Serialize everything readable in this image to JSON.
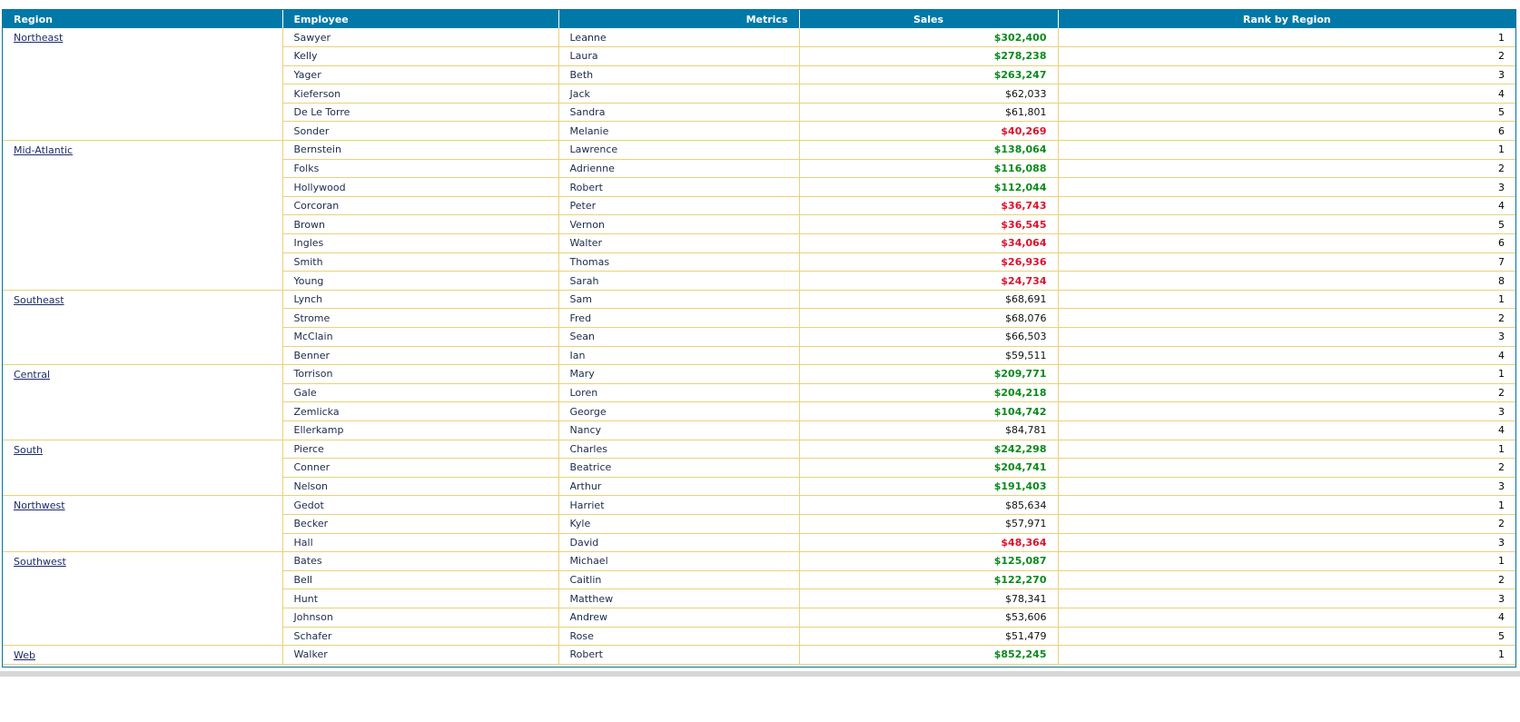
{
  "columns": {
    "region": "Region",
    "employee": "Employee",
    "metrics": "Metrics",
    "sales": "Sales",
    "rank": "Rank by Region"
  },
  "colors": {
    "header_bg": "#0079a8",
    "grid_line": "#e8d27a",
    "sales_high": "#0a8a1a",
    "sales_low": "#e0102a"
  },
  "groups": [
    {
      "region": "Northeast",
      "rows": [
        {
          "last": "Sawyer",
          "first": "Leanne",
          "sales": "$302,400",
          "level": "high",
          "rank": "1"
        },
        {
          "last": "Kelly",
          "first": "Laura",
          "sales": "$278,238",
          "level": "high",
          "rank": "2"
        },
        {
          "last": "Yager",
          "first": "Beth",
          "sales": "$263,247",
          "level": "high",
          "rank": "3"
        },
        {
          "last": "Kieferson",
          "first": "Jack",
          "sales": "$62,033",
          "level": "mid",
          "rank": "4"
        },
        {
          "last": "De Le Torre",
          "first": "Sandra",
          "sales": "$61,801",
          "level": "mid",
          "rank": "5"
        },
        {
          "last": "Sonder",
          "first": "Melanie",
          "sales": "$40,269",
          "level": "low",
          "rank": "6"
        }
      ]
    },
    {
      "region": "Mid-Atlantic",
      "rows": [
        {
          "last": "Bernstein",
          "first": "Lawrence",
          "sales": "$138,064",
          "level": "high",
          "rank": "1"
        },
        {
          "last": "Folks",
          "first": "Adrienne",
          "sales": "$116,088",
          "level": "high",
          "rank": "2"
        },
        {
          "last": "Hollywood",
          "first": "Robert",
          "sales": "$112,044",
          "level": "high",
          "rank": "3"
        },
        {
          "last": "Corcoran",
          "first": "Peter",
          "sales": "$36,743",
          "level": "low",
          "rank": "4"
        },
        {
          "last": "Brown",
          "first": "Vernon",
          "sales": "$36,545",
          "level": "low",
          "rank": "5"
        },
        {
          "last": "Ingles",
          "first": "Walter",
          "sales": "$34,064",
          "level": "low",
          "rank": "6"
        },
        {
          "last": "Smith",
          "first": "Thomas",
          "sales": "$26,936",
          "level": "low",
          "rank": "7"
        },
        {
          "last": "Young",
          "first": "Sarah",
          "sales": "$24,734",
          "level": "low",
          "rank": "8"
        }
      ]
    },
    {
      "region": "Southeast",
      "rows": [
        {
          "last": "Lynch",
          "first": "Sam",
          "sales": "$68,691",
          "level": "mid",
          "rank": "1"
        },
        {
          "last": "Strome",
          "first": "Fred",
          "sales": "$68,076",
          "level": "mid",
          "rank": "2"
        },
        {
          "last": "McClain",
          "first": "Sean",
          "sales": "$66,503",
          "level": "mid",
          "rank": "3"
        },
        {
          "last": "Benner",
          "first": "Ian",
          "sales": "$59,511",
          "level": "mid",
          "rank": "4"
        }
      ]
    },
    {
      "region": "Central",
      "rows": [
        {
          "last": "Torrison",
          "first": "Mary",
          "sales": "$209,771",
          "level": "high",
          "rank": "1"
        },
        {
          "last": "Gale",
          "first": "Loren",
          "sales": "$204,218",
          "level": "high",
          "rank": "2"
        },
        {
          "last": "Zemlicka",
          "first": "George",
          "sales": "$104,742",
          "level": "high",
          "rank": "3"
        },
        {
          "last": "Ellerkamp",
          "first": "Nancy",
          "sales": "$84,781",
          "level": "mid",
          "rank": "4"
        }
      ]
    },
    {
      "region": "South",
      "rows": [
        {
          "last": "Pierce",
          "first": "Charles",
          "sales": "$242,298",
          "level": "high",
          "rank": "1"
        },
        {
          "last": "Conner",
          "first": "Beatrice",
          "sales": "$204,741",
          "level": "high",
          "rank": "2"
        },
        {
          "last": "Nelson",
          "first": "Arthur",
          "sales": "$191,403",
          "level": "high",
          "rank": "3"
        }
      ]
    },
    {
      "region": "Northwest",
      "rows": [
        {
          "last": "Gedot",
          "first": "Harriet",
          "sales": "$85,634",
          "level": "mid",
          "rank": "1"
        },
        {
          "last": "Becker",
          "first": "Kyle",
          "sales": "$57,971",
          "level": "mid",
          "rank": "2"
        },
        {
          "last": "Hall",
          "first": "David",
          "sales": "$48,364",
          "level": "low",
          "rank": "3"
        }
      ]
    },
    {
      "region": "Southwest",
      "rows": [
        {
          "last": "Bates",
          "first": "Michael",
          "sales": "$125,087",
          "level": "high",
          "rank": "1"
        },
        {
          "last": "Bell",
          "first": "Caitlin",
          "sales": "$122,270",
          "level": "high",
          "rank": "2"
        },
        {
          "last": "Hunt",
          "first": "Matthew",
          "sales": "$78,341",
          "level": "mid",
          "rank": "3"
        },
        {
          "last": "Johnson",
          "first": "Andrew",
          "sales": "$53,606",
          "level": "mid",
          "rank": "4"
        },
        {
          "last": "Schafer",
          "first": "Rose",
          "sales": "$51,479",
          "level": "mid",
          "rank": "5"
        }
      ]
    },
    {
      "region": "Web",
      "rows": [
        {
          "last": "Walker",
          "first": "Robert",
          "sales": "$852,245",
          "level": "high",
          "rank": "1"
        }
      ]
    }
  ]
}
